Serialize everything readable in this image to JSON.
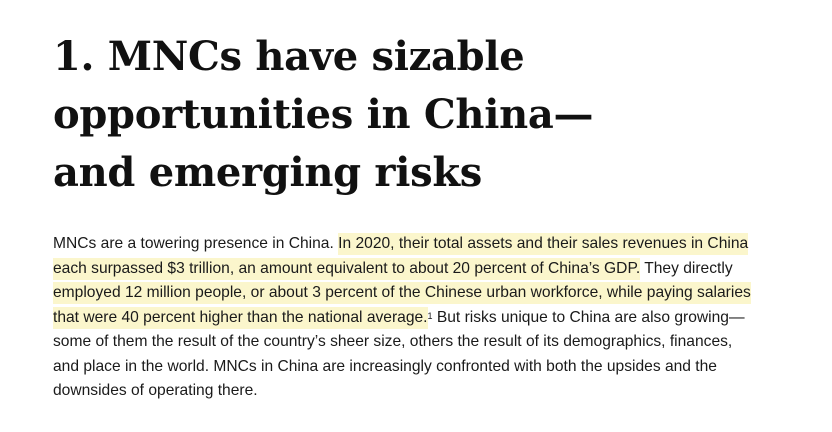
{
  "section": {
    "heading_lines": [
      "1. MNCs have sizable",
      "opportunities in China—",
      "and emerging risks"
    ],
    "paragraph_lines": [
      {
        "plain_before": "MNCs are a towering presence in China. ",
        "highlight": "In 2020, their total assets and their sales revenues in China",
        "plain_after": "",
        "footnote": ""
      },
      {
        "plain_before": "",
        "highlight": "each surpassed $3 trillion, an amount equivalent to about 20 percent of China’s GDP.",
        "plain_after": " They directly",
        "footnote": ""
      },
      {
        "plain_before": "",
        "highlight": "employed 12 million people, or about 3 percent of the Chinese urban workforce, while paying salaries",
        "plain_after": "",
        "footnote": ""
      },
      {
        "plain_before": "",
        "highlight": "that were 40 percent higher than the national average.",
        "plain_after": " But risks unique to China are also growing—",
        "footnote": "1"
      },
      {
        "plain_before": "some of them the result of the country’s sheer size, others the result of its demographics, finances,",
        "highlight": "",
        "plain_after": "",
        "footnote": ""
      },
      {
        "plain_before": "and place in the world. MNCs in China are increasingly confronted with both the upsides and the",
        "highlight": "",
        "plain_after": "",
        "footnote": ""
      },
      {
        "plain_before": "downsides of operating there.",
        "highlight": "",
        "plain_after": "",
        "footnote": ""
      }
    ]
  },
  "colors": {
    "highlight": "#fbf6cc",
    "text": "#1a1a1a",
    "heading": "#111111"
  }
}
